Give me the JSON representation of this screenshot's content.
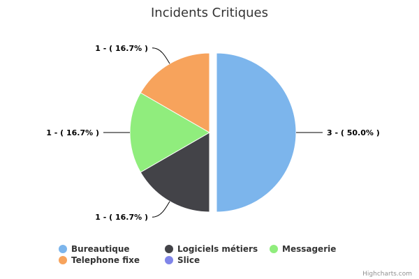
{
  "chart_data": {
    "type": "pie",
    "title": "Incidents Critiques",
    "slices": [
      {
        "name": "Bureautique",
        "value": 3,
        "percent": "50.0",
        "color": "#7cb5ec",
        "sliced": true,
        "label": "3 - ( 50.0% )"
      },
      {
        "name": "Logiciels métiers",
        "value": 1,
        "percent": "16.7",
        "color": "#434348",
        "sliced": false,
        "label": "1 - ( 16.7% )"
      },
      {
        "name": "Messagerie",
        "value": 1,
        "percent": "16.7",
        "color": "#90ed7d",
        "sliced": false,
        "label": "1 - ( 16.7% )"
      },
      {
        "name": "Telephone fixe",
        "value": 1,
        "percent": "16.7",
        "color": "#f7a35c",
        "sliced": false,
        "label": "1 - ( 16.7% )"
      },
      {
        "name": "Slice",
        "value": 0,
        "percent": "0.0",
        "color": "#8085e9",
        "sliced": false,
        "label": ""
      }
    ],
    "legend_position": "bottom",
    "credits": "Highcharts.com"
  }
}
